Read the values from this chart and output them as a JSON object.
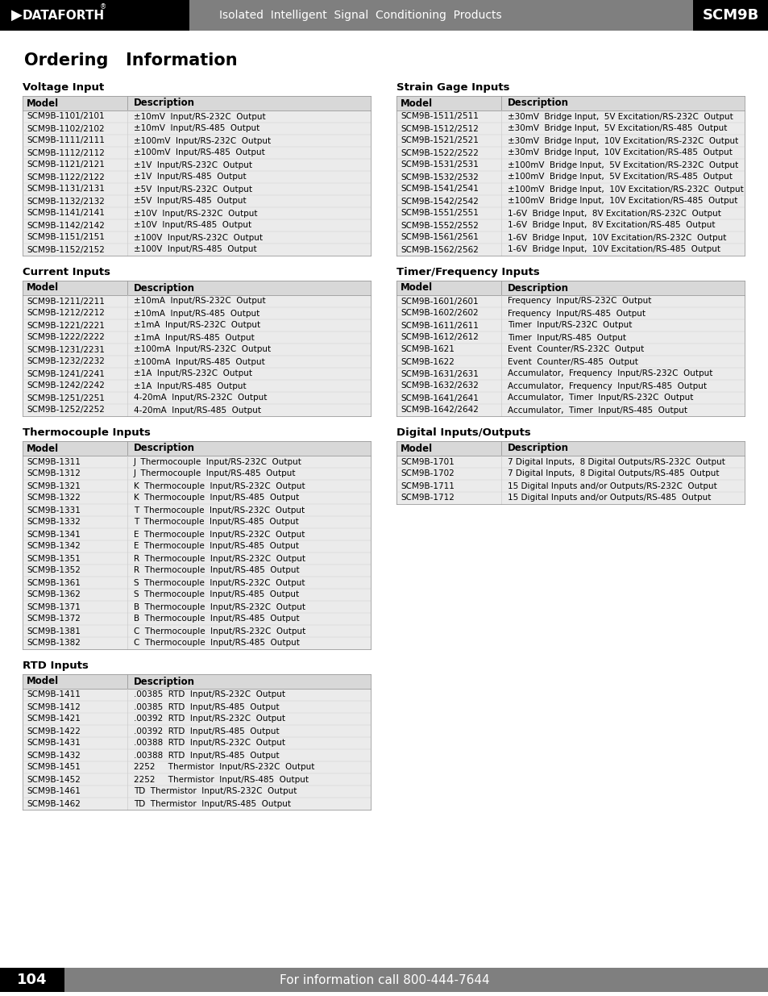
{
  "header_bg": "#7f7f7f",
  "header_text": "Isolated  Intelligent  Signal  Conditioning  Products",
  "header_model": "SCM9B",
  "footer_page": "104",
  "footer_text": "For information call 800-444-7644",
  "page_bg": "#ffffff",
  "main_title": "Ordering   Information",
  "table_bg": "#d8d8d8",
  "table_row_bg": "#ebebeb",
  "sections": [
    {
      "title": "Voltage Input",
      "col": 0,
      "rows": [
        [
          "SCM9B-1101/2101",
          "±10mV  Input/RS-232C  Output"
        ],
        [
          "SCM9B-1102/2102",
          "±10mV  Input/RS-485  Output"
        ],
        [
          "SCM9B-1111/2111",
          "±100mV  Input/RS-232C  Output"
        ],
        [
          "SCM9B-1112/2112",
          "±100mV  Input/RS-485  Output"
        ],
        [
          "SCM9B-1121/2121",
          "±1V  Input/RS-232C  Output"
        ],
        [
          "SCM9B-1122/2122",
          "±1V  Input/RS-485  Output"
        ],
        [
          "SCM9B-1131/2131",
          "±5V  Input/RS-232C  Output"
        ],
        [
          "SCM9B-1132/2132",
          "±5V  Input/RS-485  Output"
        ],
        [
          "SCM9B-1141/2141",
          "±10V  Input/RS-232C  Output"
        ],
        [
          "SCM9B-1142/2142",
          "±10V  Input/RS-485  Output"
        ],
        [
          "SCM9B-1151/2151",
          "±100V  Input/RS-232C  Output"
        ],
        [
          "SCM9B-1152/2152",
          "±100V  Input/RS-485  Output"
        ]
      ]
    },
    {
      "title": "Current Inputs",
      "col": 0,
      "rows": [
        [
          "SCM9B-1211/2211",
          "±10mA  Input/RS-232C  Output"
        ],
        [
          "SCM9B-1212/2212",
          "±10mA  Input/RS-485  Output"
        ],
        [
          "SCM9B-1221/2221",
          "±1mA  Input/RS-232C  Output"
        ],
        [
          "SCM9B-1222/2222",
          "±1mA  Input/RS-485  Output"
        ],
        [
          "SCM9B-1231/2231",
          "±100mA  Input/RS-232C  Output"
        ],
        [
          "SCM9B-1232/2232",
          "±100mA  Input/RS-485  Output"
        ],
        [
          "SCM9B-1241/2241",
          "±1A  Input/RS-232C  Output"
        ],
        [
          "SCM9B-1242/2242",
          "±1A  Input/RS-485  Output"
        ],
        [
          "SCM9B-1251/2251",
          "4-20mA  Input/RS-232C  Output"
        ],
        [
          "SCM9B-1252/2252",
          "4-20mA  Input/RS-485  Output"
        ]
      ]
    },
    {
      "title": "Thermocouple Inputs",
      "col": 0,
      "rows": [
        [
          "SCM9B-1311",
          "J  Thermocouple  Input/RS-232C  Output"
        ],
        [
          "SCM9B-1312",
          "J  Thermocouple  Input/RS-485  Output"
        ],
        [
          "SCM9B-1321",
          "K  Thermocouple  Input/RS-232C  Output"
        ],
        [
          "SCM9B-1322",
          "K  Thermocouple  Input/RS-485  Output"
        ],
        [
          "SCM9B-1331",
          "T  Thermocouple  Input/RS-232C  Output"
        ],
        [
          "SCM9B-1332",
          "T  Thermocouple  Input/RS-485  Output"
        ],
        [
          "SCM9B-1341",
          "E  Thermocouple  Input/RS-232C  Output"
        ],
        [
          "SCM9B-1342",
          "E  Thermocouple  Input/RS-485  Output"
        ],
        [
          "SCM9B-1351",
          "R  Thermocouple  Input/RS-232C  Output"
        ],
        [
          "SCM9B-1352",
          "R  Thermocouple  Input/RS-485  Output"
        ],
        [
          "SCM9B-1361",
          "S  Thermocouple  Input/RS-232C  Output"
        ],
        [
          "SCM9B-1362",
          "S  Thermocouple  Input/RS-485  Output"
        ],
        [
          "SCM9B-1371",
          "B  Thermocouple  Input/RS-232C  Output"
        ],
        [
          "SCM9B-1372",
          "B  Thermocouple  Input/RS-485  Output"
        ],
        [
          "SCM9B-1381",
          "C  Thermocouple  Input/RS-232C  Output"
        ],
        [
          "SCM9B-1382",
          "C  Thermocouple  Input/RS-485  Output"
        ]
      ]
    },
    {
      "title": "RTD Inputs",
      "col": 0,
      "rows": [
        [
          "SCM9B-1411",
          ".00385  RTD  Input/RS-232C  Output"
        ],
        [
          "SCM9B-1412",
          ".00385  RTD  Input/RS-485  Output"
        ],
        [
          "SCM9B-1421",
          ".00392  RTD  Input/RS-232C  Output"
        ],
        [
          "SCM9B-1422",
          ".00392  RTD  Input/RS-485  Output"
        ],
        [
          "SCM9B-1431",
          ".00388  RTD  Input/RS-232C  Output"
        ],
        [
          "SCM9B-1432",
          ".00388  RTD  Input/RS-485  Output"
        ],
        [
          "SCM9B-1451",
          "2252     Thermistor  Input/RS-232C  Output"
        ],
        [
          "SCM9B-1452",
          "2252     Thermistor  Input/RS-485  Output"
        ],
        [
          "SCM9B-1461",
          "TD  Thermistor  Input/RS-232C  Output"
        ],
        [
          "SCM9B-1462",
          "TD  Thermistor  Input/RS-485  Output"
        ]
      ]
    },
    {
      "title": "Strain Gage Inputs",
      "col": 1,
      "rows": [
        [
          "SCM9B-1511/2511",
          "±30mV  Bridge Input,  5V Excitation/RS-232C  Output"
        ],
        [
          "SCM9B-1512/2512",
          "±30mV  Bridge Input,  5V Excitation/RS-485  Output"
        ],
        [
          "SCM9B-1521/2521",
          "±30mV  Bridge Input,  10V Excitation/RS-232C  Output"
        ],
        [
          "SCM9B-1522/2522",
          "±30mV  Bridge Input,  10V Excitation/RS-485  Output"
        ],
        [
          "SCM9B-1531/2531",
          "±100mV  Bridge Input,  5V Excitation/RS-232C  Output"
        ],
        [
          "SCM9B-1532/2532",
          "±100mV  Bridge Input,  5V Excitation/RS-485  Output"
        ],
        [
          "SCM9B-1541/2541",
          "±100mV  Bridge Input,  10V Excitation/RS-232C  Output"
        ],
        [
          "SCM9B-1542/2542",
          "±100mV  Bridge Input,  10V Excitation/RS-485  Output"
        ],
        [
          "SCM9B-1551/2551",
          "1-6V  Bridge Input,  8V Excitation/RS-232C  Output"
        ],
        [
          "SCM9B-1552/2552",
          "1-6V  Bridge Input,  8V Excitation/RS-485  Output"
        ],
        [
          "SCM9B-1561/2561",
          "1-6V  Bridge Input,  10V Excitation/RS-232C  Output"
        ],
        [
          "SCM9B-1562/2562",
          "1-6V  Bridge Input,  10V Excitation/RS-485  Output"
        ]
      ]
    },
    {
      "title": "Timer/Frequency Inputs",
      "col": 1,
      "rows": [
        [
          "SCM9B-1601/2601",
          "Frequency  Input/RS-232C  Output"
        ],
        [
          "SCM9B-1602/2602",
          "Frequency  Input/RS-485  Output"
        ],
        [
          "SCM9B-1611/2611",
          "Timer  Input/RS-232C  Output"
        ],
        [
          "SCM9B-1612/2612",
          "Timer  Input/RS-485  Output"
        ],
        [
          "SCM9B-1621",
          "Event  Counter/RS-232C  Output"
        ],
        [
          "SCM9B-1622",
          "Event  Counter/RS-485  Output"
        ],
        [
          "SCM9B-1631/2631",
          "Accumulator,  Frequency  Input/RS-232C  Output"
        ],
        [
          "SCM9B-1632/2632",
          "Accumulator,  Frequency  Input/RS-485  Output"
        ],
        [
          "SCM9B-1641/2641",
          "Accumulator,  Timer  Input/RS-232C  Output"
        ],
        [
          "SCM9B-1642/2642",
          "Accumulator,  Timer  Input/RS-485  Output"
        ]
      ]
    },
    {
      "title": "Digital Inputs/Outputs",
      "col": 1,
      "rows": [
        [
          "SCM9B-1701",
          "7 Digital Inputs,  8 Digital Outputs/RS-232C  Output"
        ],
        [
          "SCM9B-1702",
          "7 Digital Inputs,  8 Digital Outputs/RS-485  Output"
        ],
        [
          "SCM9B-1711",
          "15 Digital Inputs and/or Outputs/RS-232C  Output"
        ],
        [
          "SCM9B-1712",
          "15 Digital Inputs and/or Outputs/RS-485  Output"
        ]
      ]
    }
  ]
}
